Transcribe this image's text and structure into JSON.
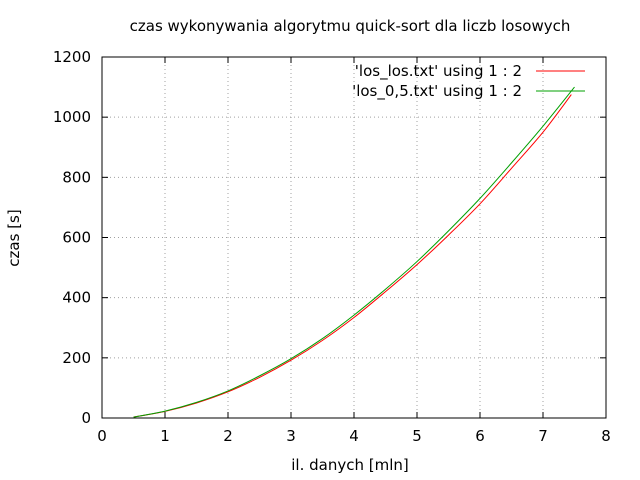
{
  "chart_data": {
    "type": "line",
    "title": "czas wykonywania algorytmu quick-sort dla liczb losowych",
    "xlabel": "il. danych [mln]",
    "ylabel": "czas [s]",
    "xlim": [
      0,
      8
    ],
    "ylim": [
      0,
      1200
    ],
    "xticks": [
      "0",
      "1",
      "2",
      "3",
      "4",
      "5",
      "6",
      "7",
      "8"
    ],
    "yticks": [
      "0",
      "200",
      "400",
      "600",
      "800",
      "1000",
      "1200"
    ],
    "grid": true,
    "legend_position": "top-right",
    "series": [
      {
        "name": "'los_los.txt' using 1 : 2",
        "color": "#ff0000",
        "x": [
          0.5,
          1.0,
          1.5,
          2.0,
          2.5,
          3.0,
          3.5,
          4.0,
          4.5,
          5.0,
          5.5,
          6.0,
          6.5,
          7.0,
          7.45
        ],
        "y": [
          3,
          22,
          50,
          87,
          135,
          192,
          258,
          334,
          420,
          510,
          608,
          712,
          830,
          950,
          1075
        ]
      },
      {
        "name": "'los_0,5.txt' using 1 : 2",
        "color": "#00a000",
        "x": [
          0.5,
          1.0,
          1.5,
          2.0,
          2.5,
          3.0,
          3.5,
          4.0,
          4.5,
          5.0,
          5.5,
          6.0,
          6.5,
          7.0,
          7.5
        ],
        "y": [
          3,
          23,
          52,
          90,
          140,
          197,
          264,
          342,
          428,
          520,
          622,
          730,
          848,
          970,
          1100
        ]
      }
    ]
  }
}
